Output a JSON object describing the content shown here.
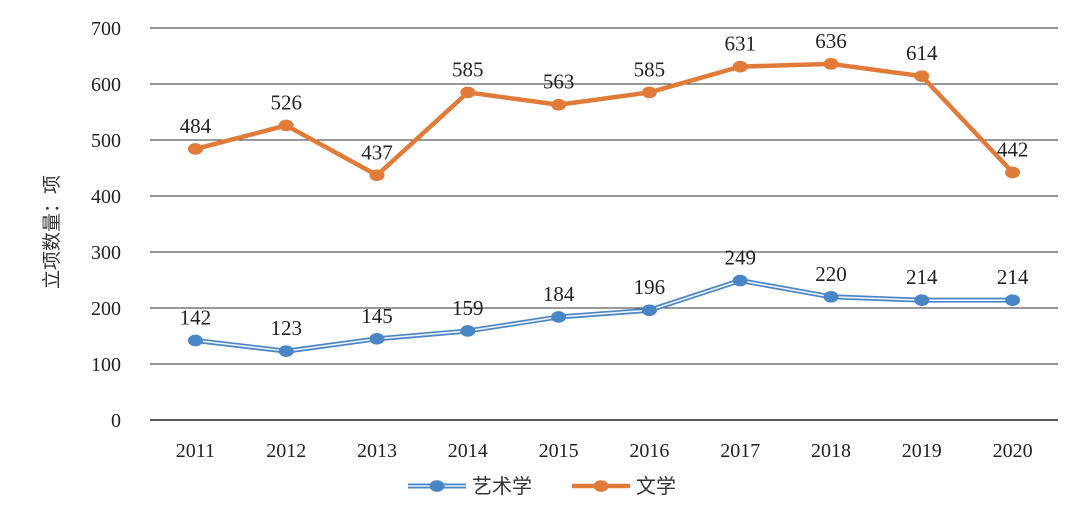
{
  "chart_data": {
    "type": "line",
    "title": "",
    "xlabel": "",
    "ylabel": "立项数量：项",
    "categories": [
      "2011",
      "2012",
      "2013",
      "2014",
      "2015",
      "2016",
      "2017",
      "2018",
      "2019",
      "2020"
    ],
    "ylim": [
      0,
      700
    ],
    "yticks": [
      0,
      100,
      200,
      300,
      400,
      500,
      600,
      700
    ],
    "grid": true,
    "legend_position": "bottom-center",
    "series": [
      {
        "name": "艺术学",
        "color": "#4a86c5",
        "style": "double-line",
        "values": [
          142,
          123,
          145,
          159,
          184,
          196,
          249,
          220,
          214,
          214
        ]
      },
      {
        "name": "文学",
        "color": "#e07b3a",
        "style": "solid",
        "values": [
          484,
          526,
          437,
          585,
          563,
          585,
          631,
          636,
          614,
          442
        ]
      }
    ]
  }
}
